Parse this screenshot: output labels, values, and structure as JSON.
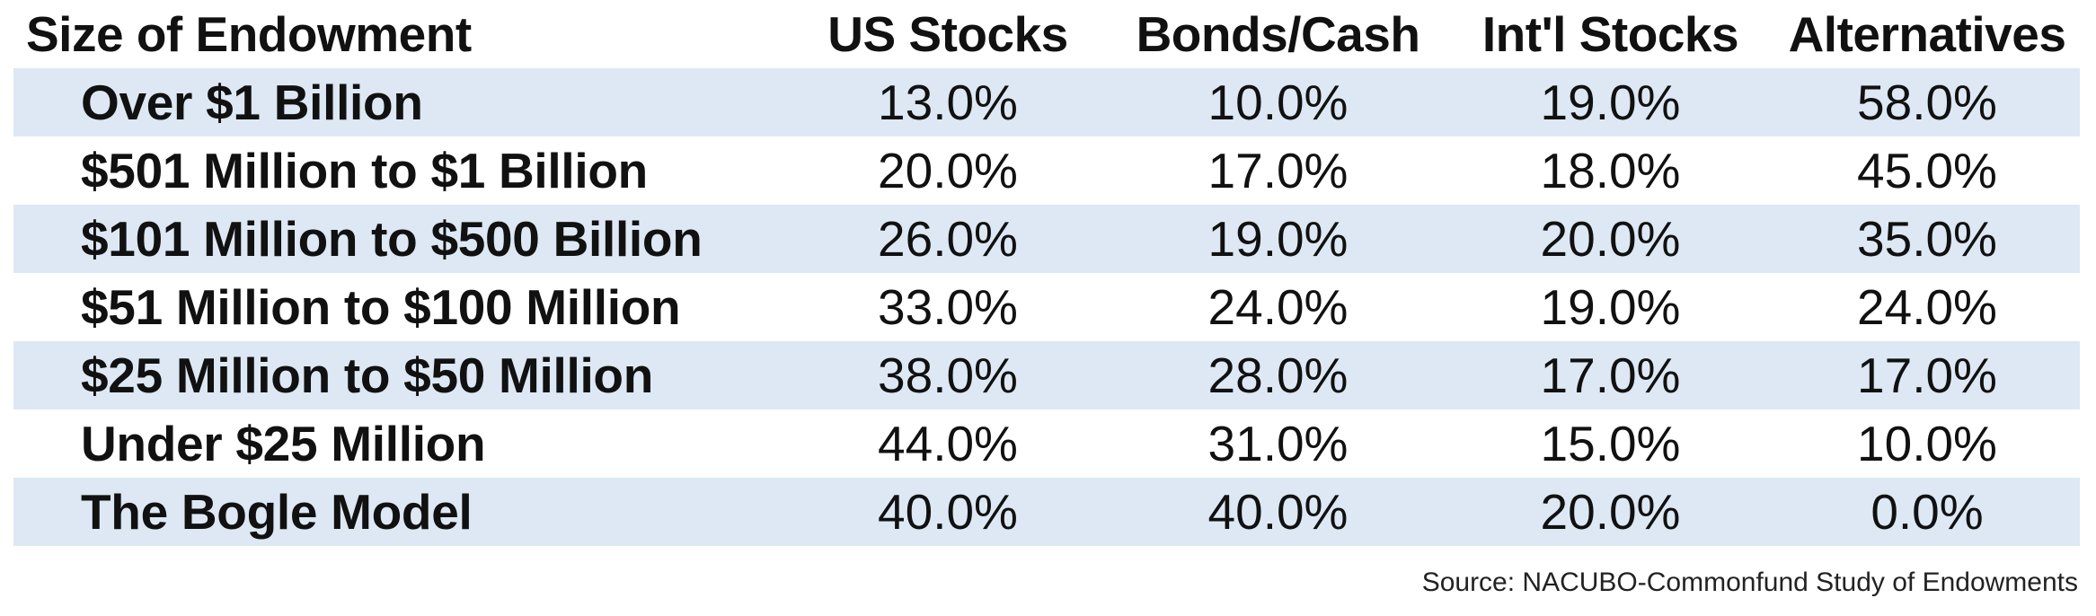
{
  "chart_data": {
    "type": "table",
    "columns": [
      "Size of Endowment",
      "US Stocks",
      "Bonds/Cash",
      "Int'l Stocks",
      "Alternatives"
    ],
    "rows": [
      {
        "label": "Over $1 Billion",
        "values": [
          "13.0%",
          "10.0%",
          "19.0%",
          "58.0%"
        ]
      },
      {
        "label": "$501 Million to $1 Billion",
        "values": [
          "20.0%",
          "17.0%",
          "18.0%",
          "45.0%"
        ]
      },
      {
        "label": "$101 Million to $500 Billion",
        "values": [
          "26.0%",
          "19.0%",
          "20.0%",
          "35.0%"
        ]
      },
      {
        "label": "$51 Million to $100 Million",
        "values": [
          "33.0%",
          "24.0%",
          "19.0%",
          "24.0%"
        ]
      },
      {
        "label": "$25 Million to $50 Million",
        "values": [
          "38.0%",
          "28.0%",
          "17.0%",
          "17.0%"
        ]
      },
      {
        "label": "Under $25 Million",
        "values": [
          "44.0%",
          "31.0%",
          "15.0%",
          "10.0%"
        ]
      },
      {
        "label": "The Bogle Model",
        "values": [
          "40.0%",
          "40.0%",
          "20.0%",
          "0.0%"
        ]
      }
    ],
    "source": "Source: NACUBO-Commonfund Study of Endowments",
    "colors": {
      "shaded_row": "#dde8f4",
      "text": "#111111"
    }
  }
}
